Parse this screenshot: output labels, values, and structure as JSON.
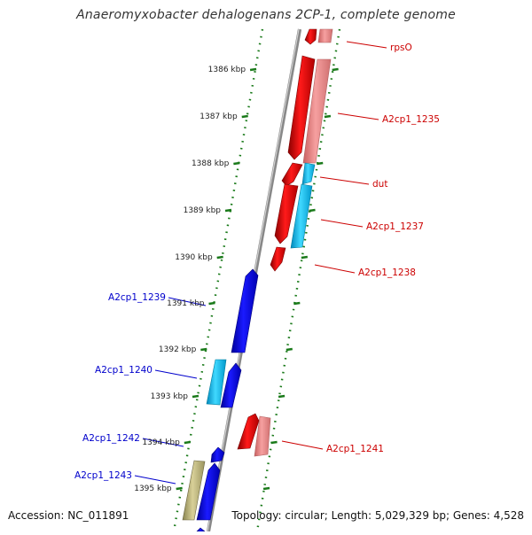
{
  "title": "Anaeromyxobacter dehalogenans 2CP-1, complete genome",
  "accession": "Accession: NC_011891",
  "topology": "Topology: circular; Length: 5,029,329 bp; Genes: 4,528",
  "ticks": [
    "1386 kbp",
    "1387 kbp",
    "1388 kbp",
    "1389 kbp",
    "1390 kbp",
    "1391 kbp",
    "1392 kbp",
    "1393 kbp",
    "1394 kbp",
    "1395 kbp"
  ],
  "genes": [
    {
      "label": "rpsO",
      "strand": "forward",
      "color": "#d40000"
    },
    {
      "label": "A2cp1_1235",
      "strand": "forward",
      "color": "#d40000"
    },
    {
      "label": "dut",
      "strand": "forward",
      "color": "#d40000"
    },
    {
      "label": "A2cp1_1237",
      "strand": "forward",
      "color": "#d40000"
    },
    {
      "label": "A2cp1_1238",
      "strand": "forward",
      "color": "#d40000"
    },
    {
      "label": "A2cp1_1239",
      "strand": "reverse",
      "color": "#0000cc"
    },
    {
      "label": "A2cp1_1240",
      "strand": "reverse",
      "color": "#0000cc"
    },
    {
      "label": "A2cp1_1241",
      "strand": "forward",
      "color": "#d40000"
    },
    {
      "label": "A2cp1_1242",
      "strand": "reverse",
      "color": "#0000cc"
    },
    {
      "label": "A2cp1_1243",
      "strand": "reverse",
      "color": "#0000cc"
    }
  ],
  "colors": {
    "forward_cds": "#ff0000",
    "forward_cds_light": "#f09090",
    "reverse_cds": "#0000ee",
    "reverse_cds_light": "#22c0ee",
    "other_feature": "#c0b878",
    "backbone": "#888888",
    "tick_mark": "#1a7a1a",
    "forward_label": "#cc0000",
    "reverse_label": "#0000cc"
  }
}
